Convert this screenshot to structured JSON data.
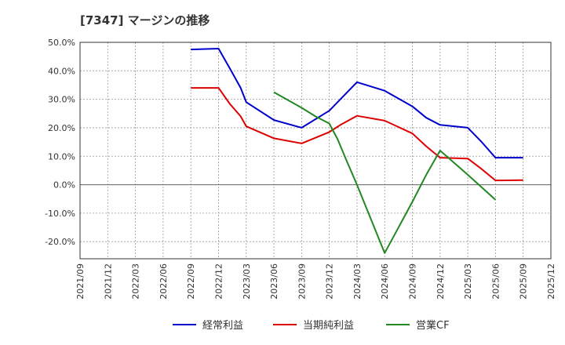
{
  "chart_data": {
    "type": "line",
    "title": "[7347]  マージンの推移",
    "xlabel": "",
    "ylabel": "",
    "ylim": [
      -26,
      50
    ],
    "yticks": [
      50,
      40,
      30,
      20,
      10,
      0,
      -10,
      -20
    ],
    "ytick_labels": [
      "50.0%",
      "40.0%",
      "30.0%",
      "20.0%",
      "10.0%",
      "0.0%",
      "-10.0%",
      "-20.0%"
    ],
    "xticks": [
      "2021/09",
      "2021/12",
      "2022/03",
      "2022/06",
      "2022/09",
      "2022/12",
      "2023/03",
      "2023/06",
      "2023/09",
      "2023/12",
      "2024/03",
      "2024/06",
      "2024/09",
      "2024/12",
      "2025/03",
      "2025/06",
      "2025/09",
      "2025/12"
    ],
    "grid": true,
    "legend_position": "bottom",
    "series": [
      {
        "name": "経常利益",
        "color": "#0000cc",
        "x": [
          4,
          5,
          5.4,
          5.8,
          6,
          7,
          8,
          9,
          9.4,
          10,
          11,
          12,
          12.5,
          13,
          14,
          14.5,
          15,
          16
        ],
        "values": [
          47.5,
          47.8,
          41,
          34,
          29,
          22.7,
          20,
          26,
          30,
          36,
          33,
          27.5,
          23.5,
          21,
          20,
          15,
          9.5,
          9.5
        ]
      },
      {
        "name": "当期純利益",
        "color": "#dd0000",
        "x": [
          4,
          5,
          5.4,
          5.8,
          6,
          7,
          8,
          9,
          9.4,
          10,
          11,
          12,
          12.5,
          13,
          14,
          14.5,
          15,
          16
        ],
        "values": [
          34,
          34,
          28.5,
          24,
          20.5,
          16.3,
          14.5,
          18.5,
          21,
          24.2,
          22.5,
          18,
          13.5,
          9.5,
          9.2,
          5.5,
          1.5,
          1.6
        ]
      },
      {
        "name": "営業CF",
        "color": "#228822",
        "x": [
          7,
          8,
          8.5,
          9,
          9.3,
          9.6,
          10,
          11,
          12,
          12.5,
          13,
          14,
          15
        ],
        "values": [
          32.5,
          27,
          24,
          21.5,
          16,
          9,
          0,
          -24,
          -6,
          3.5,
          12,
          3.5,
          -5.3
        ]
      }
    ]
  }
}
